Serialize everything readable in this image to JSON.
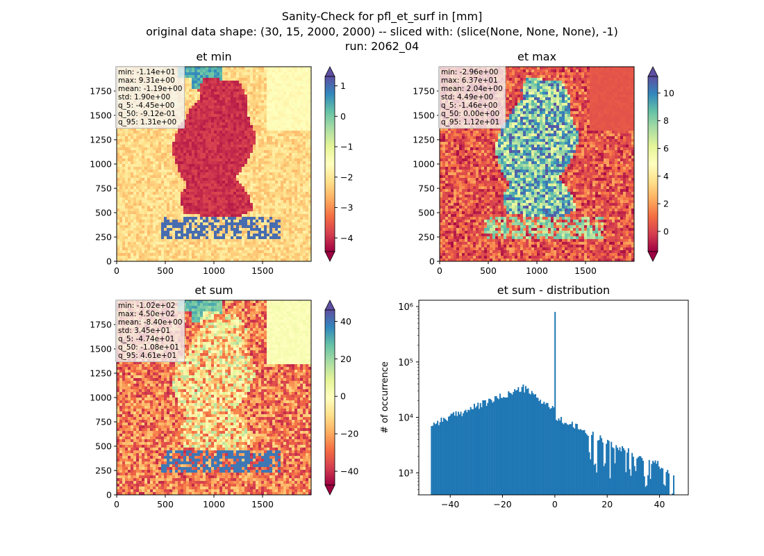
{
  "figure": {
    "suptitle_line1": "Sanity-Check for pfl_et_surf in [mm]",
    "suptitle_line2": "original data shape: (30, 15, 2000, 2000) -- sliced with: (slice(None, None, None), -1)",
    "suptitle_line3": "run: 2062_04"
  },
  "colormap": "Spectral",
  "chart_data": [
    {
      "type": "heatmap",
      "title": "et min",
      "x_ticks": [
        "0",
        "500",
        "1000",
        "1500"
      ],
      "y_ticks": [
        "0",
        "250",
        "500",
        "750",
        "1000",
        "1250",
        "1500",
        "1750"
      ],
      "xlim": [
        0,
        2000
      ],
      "ylim": [
        0,
        2000
      ],
      "colorbar": {
        "vmin": -4.45,
        "vmax": 1.31,
        "ticks": [
          1,
          0,
          -1,
          -2,
          -3,
          -4
        ],
        "tick_labels": [
          "1",
          "0",
          "−1",
          "−2",
          "−3",
          "−4"
        ],
        "extend": "both"
      },
      "stats": [
        "min: -1.14e+01",
        "max: 9.31e+00",
        "mean: -1.19e+00",
        "std: 1.90e+00",
        "q_5: -4.45e+00",
        "q_50: -9.12e-01",
        "q_95: 1.31e+00"
      ]
    },
    {
      "type": "heatmap",
      "title": "et max",
      "x_ticks": [
        "0",
        "500",
        "1000",
        "1500"
      ],
      "y_ticks": [
        "0",
        "250",
        "500",
        "750",
        "1000",
        "1250",
        "1500",
        "1750"
      ],
      "xlim": [
        0,
        2000
      ],
      "ylim": [
        0,
        2000
      ],
      "colorbar": {
        "vmin": -1.46,
        "vmax": 11.2,
        "ticks": [
          10,
          8,
          6,
          4,
          2,
          0
        ],
        "tick_labels": [
          "10",
          "8",
          "6",
          "4",
          "2",
          "0"
        ],
        "extend": "both"
      },
      "stats": [
        "min: -2.96e+00",
        "max: 6.37e+01",
        "mean: 2.04e+00",
        "std: 4.49e+00",
        "q_5: -1.46e+00",
        "q_50: 0.00e+00",
        "q_95: 1.12e+01"
      ]
    },
    {
      "type": "heatmap",
      "title": "et sum",
      "x_ticks": [
        "0",
        "500",
        "1000",
        "1500"
      ],
      "y_ticks": [
        "0",
        "250",
        "500",
        "750",
        "1000",
        "1250",
        "1500",
        "1750"
      ],
      "xlim": [
        0,
        2000
      ],
      "ylim": [
        0,
        2000
      ],
      "colorbar": {
        "vmin": -47.4,
        "vmax": 46.1,
        "ticks": [
          40,
          20,
          0,
          -20,
          -40
        ],
        "tick_labels": [
          "40",
          "20",
          "0",
          "−20",
          "−40"
        ],
        "extend": "both"
      },
      "stats": [
        "min: -1.02e+02",
        "max: 4.50e+02",
        "mean: -8.40e+00",
        "std: 3.45e+01",
        "q_5: -4.74e+01",
        "q_50: -1.08e+01",
        "q_95: 4.61e+01"
      ]
    },
    {
      "type": "bar",
      "title": "et sum - distribution",
      "ylabel": "# of occurrence",
      "xlabel": "",
      "y_scale": "log",
      "xlim": [
        -52,
        51
      ],
      "ylim": [
        400,
        1300000
      ],
      "x_ticks": [
        -40,
        -20,
        0,
        20,
        40
      ],
      "x_tick_labels": [
        "−40",
        "−20",
        "0",
        "20",
        "40"
      ],
      "y_ticks": [
        1000,
        10000,
        100000,
        1000000
      ],
      "y_tick_labels": [
        "10³",
        "10⁴",
        "10⁵",
        "10⁶"
      ],
      "bar_color": "#1f77b4",
      "bin_range": [
        -47.4,
        46.1
      ],
      "bins": 200,
      "peak": {
        "x": 0,
        "count": 800000
      }
    }
  ]
}
